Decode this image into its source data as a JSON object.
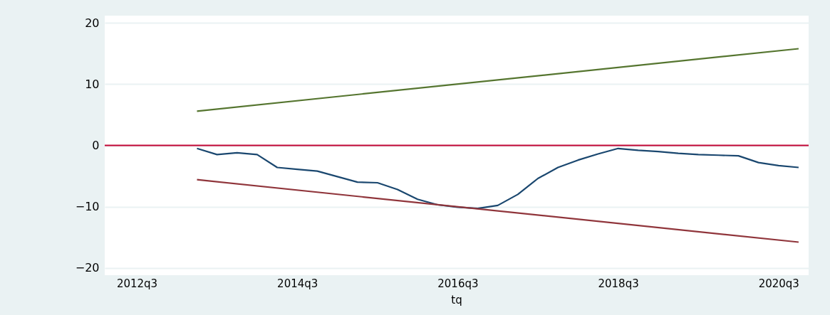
{
  "chart_data": {
    "type": "line",
    "xlabel": "tq",
    "categories": [
      null,
      "2012q3",
      null,
      null,
      null,
      null,
      null,
      null,
      null,
      "2014q3",
      null,
      null,
      null,
      null,
      null,
      null,
      null,
      "2016q3",
      null,
      null,
      null,
      null,
      null,
      null,
      null,
      "2018q3",
      null,
      null,
      null,
      null,
      null,
      null,
      null,
      "2020q3",
      null
    ],
    "ylim": [
      -21.2,
      21.2
    ],
    "yticks": [
      -20,
      -10,
      0,
      10,
      20
    ],
    "grid": "y",
    "series": [
      {
        "color": "#1a476f",
        "values": [
          null,
          null,
          null,
          null,
          -0.5,
          -1.5,
          -1.2,
          -1.5,
          -3.6,
          -3.9,
          -4.2,
          -5.1,
          -6.0,
          -6.1,
          -7.2,
          -8.8,
          -9.7,
          -10.1,
          -10.3,
          -9.8,
          -8.0,
          -5.4,
          -3.6,
          -2.4,
          -1.4,
          -0.5,
          -0.8,
          -1.0,
          -1.3,
          -1.5,
          -1.6,
          -1.7,
          -2.8,
          -3.3,
          -3.6
        ]
      },
      {
        "color": "#55752f",
        "values": [
          null,
          null,
          null,
          null,
          5.6,
          null,
          null,
          null,
          null,
          null,
          null,
          null,
          null,
          null,
          null,
          null,
          null,
          null,
          null,
          null,
          null,
          null,
          null,
          null,
          null,
          null,
          null,
          null,
          null,
          null,
          null,
          null,
          null,
          null,
          15.8
        ]
      },
      {
        "color": "#90353b",
        "values": [
          null,
          null,
          null,
          null,
          -5.6,
          null,
          null,
          null,
          null,
          null,
          null,
          null,
          null,
          null,
          null,
          null,
          null,
          null,
          null,
          null,
          null,
          null,
          null,
          null,
          null,
          null,
          null,
          null,
          null,
          null,
          null,
          null,
          null,
          null,
          -15.8
        ]
      }
    ],
    "ref_lines": [
      {
        "axis": "y",
        "value": 0,
        "color": "#c10534"
      }
    ]
  }
}
